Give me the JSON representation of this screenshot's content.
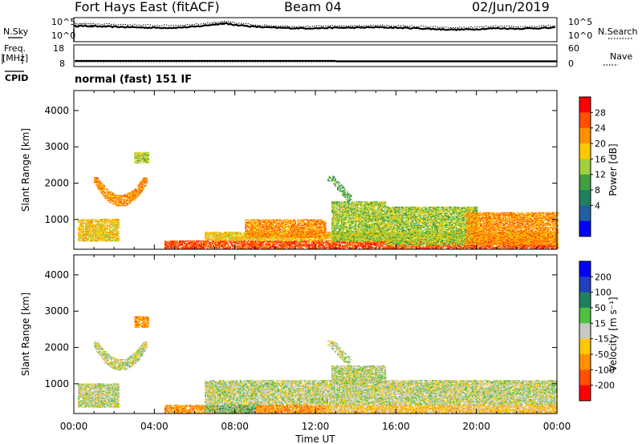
{
  "header": {
    "radar": "Fort Hays East (fitACF)",
    "beam": "Beam 04",
    "date": "02/Jun/2019"
  },
  "left_labels": {
    "nsky": "N.Sky",
    "freq": "Freq.",
    "freq_unit": "[MHz]",
    "cpid": "CPID"
  },
  "right_labels": {
    "nsearch": "N.Search",
    "nave": "Nave"
  },
  "cpid_text": "normal (fast) 151 IF",
  "colors": {
    "frame": "#000000",
    "grey": "#c8c8c0"
  },
  "chart_data": [
    {
      "type": "line",
      "name": "noise",
      "ylim_log": [
        0,
        5
      ],
      "left_ticks": [
        "10^5",
        "10^0"
      ],
      "right_ticks": [
        "10^5",
        "10^0"
      ],
      "x_hours": [
        0,
        0.5,
        1,
        2,
        3,
        4,
        5,
        6,
        7,
        7.5,
        8,
        9,
        10,
        11,
        12,
        13,
        14,
        15,
        16,
        17,
        18,
        19,
        20,
        21,
        22,
        23,
        24
      ],
      "nsky_log": [
        3.2,
        3.3,
        3.2,
        3.1,
        3.0,
        2.9,
        2.9,
        3.1,
        3.6,
        3.8,
        3.5,
        3.1,
        2.9,
        2.8,
        2.8,
        2.9,
        2.9,
        3.0,
        2.9,
        2.8,
        2.6,
        2.5,
        2.6,
        2.8,
        2.7,
        2.8,
        2.9
      ],
      "nsearch_log": [
        3.7,
        3.8,
        3.7,
        3.6,
        3.5,
        3.4,
        3.4,
        3.6,
        4.0,
        4.2,
        3.9,
        3.5,
        3.3,
        3.2,
        3.2,
        3.3,
        3.3,
        3.4,
        3.3,
        3.2,
        3.0,
        2.9,
        3.0,
        3.2,
        3.1,
        3.2,
        3.3
      ]
    },
    {
      "type": "line",
      "name": "frequency-nave",
      "left_ticks": [
        "18",
        "8"
      ],
      "right_ticks": [
        "60",
        "0"
      ],
      "freq_ylim": [
        8,
        18
      ],
      "freq_segments": [
        {
          "start": 0.05,
          "end": 13.0,
          "value": 10.6
        },
        {
          "start": 13.0,
          "end": 24.0,
          "value": 10.4
        }
      ],
      "nave_ylim": [
        0,
        60
      ],
      "nave_value": 13
    },
    {
      "type": "heatmap",
      "name": "power",
      "xlim": [
        0,
        24
      ],
      "ylim": [
        180,
        4550
      ],
      "ylabel": "Slant Range [km]",
      "yticks": [
        1000,
        2000,
        3000,
        4000
      ],
      "colorbar_label": "Power [dB]",
      "colorbar_ticks": [
        "28",
        "24",
        "20",
        "16",
        "12",
        "8",
        "4"
      ],
      "colorbar_colors": [
        "#ff0000",
        "#ff5000",
        "#ff9000",
        "#ffc800",
        "#a0d040",
        "#40a040",
        "#208060",
        "#2060a0",
        "#0000ff"
      ],
      "regions": [
        {
          "t0": 1.0,
          "t1": 3.6,
          "r0": 1350,
          "r1": 2150,
          "shape": "arc",
          "level": 6
        },
        {
          "t0": 3.0,
          "t1": 3.7,
          "r0": 2550,
          "r1": 2850,
          "shape": "box",
          "level": 4
        },
        {
          "t0": 0.2,
          "t1": 2.2,
          "r0": 400,
          "r1": 1000,
          "shape": "box",
          "level": 5
        },
        {
          "t0": 4.5,
          "t1": 24.0,
          "r0": 200,
          "r1": 420,
          "shape": "box",
          "level": 7
        },
        {
          "t0": 6.5,
          "t1": 24.0,
          "r0": 420,
          "r1": 650,
          "shape": "box",
          "level": 5
        },
        {
          "t0": 8.5,
          "t1": 12.5,
          "r0": 500,
          "r1": 1000,
          "shape": "box",
          "level": 6
        },
        {
          "t0": 12.8,
          "t1": 15.5,
          "r0": 400,
          "r1": 1500,
          "shape": "box",
          "level": 4
        },
        {
          "t0": 15.5,
          "t1": 20.0,
          "r0": 300,
          "r1": 1350,
          "shape": "box",
          "level": 4
        },
        {
          "t0": 19.5,
          "t1": 24.0,
          "r0": 300,
          "r1": 1200,
          "shape": "box",
          "level": 6
        },
        {
          "t0": 12.6,
          "t1": 13.8,
          "r0": 1500,
          "r1": 2200,
          "shape": "streak",
          "level": 3
        }
      ]
    },
    {
      "type": "heatmap",
      "name": "velocity",
      "xlim": [
        0,
        24
      ],
      "ylim": [
        180,
        4550
      ],
      "xlabel": "Time UT",
      "ylabel": "Slant Range [km]",
      "xticks": [
        "00:00",
        "04:00",
        "08:00",
        "12:00",
        "16:00",
        "20:00",
        "00:00"
      ],
      "yticks": [
        1000,
        2000,
        3000,
        4000
      ],
      "colorbar_label": "Velocity [m s⁻¹]",
      "colorbar_ticks": [
        "200",
        "100",
        "50",
        "15",
        "-15",
        "-50",
        "-100",
        "-200"
      ],
      "colorbar_colors": [
        "#0000ff",
        "#2040c0",
        "#208060",
        "#50c040",
        "#c8c8c0",
        "#ffc800",
        "#ff9000",
        "#ff5000",
        "#ff0000"
      ],
      "regions": [
        {
          "t0": 1.0,
          "t1": 3.6,
          "r0": 1350,
          "r1": 2150,
          "shape": "arc",
          "level": 4
        },
        {
          "t0": 3.0,
          "t1": 3.7,
          "r0": 2550,
          "r1": 2850,
          "shape": "box",
          "level": 6
        },
        {
          "t0": 0.2,
          "t1": 2.2,
          "r0": 350,
          "r1": 1000,
          "shape": "box",
          "level": 4
        },
        {
          "t0": 4.5,
          "t1": 12.5,
          "r0": 200,
          "r1": 420,
          "shape": "box",
          "level": 6
        },
        {
          "t0": 6.5,
          "t1": 9.0,
          "r0": 200,
          "r1": 420,
          "shape": "box",
          "level": 3
        },
        {
          "t0": 12.5,
          "t1": 24.0,
          "r0": 200,
          "r1": 420,
          "shape": "box",
          "level": 5
        },
        {
          "t0": 6.5,
          "t1": 24.0,
          "r0": 420,
          "r1": 1100,
          "shape": "box",
          "level": 4
        },
        {
          "t0": 12.8,
          "t1": 15.5,
          "r0": 1000,
          "r1": 1500,
          "shape": "box",
          "level": 4
        },
        {
          "t0": 12.6,
          "t1": 13.8,
          "r0": 1500,
          "r1": 2200,
          "shape": "streak",
          "level": 4
        }
      ]
    }
  ]
}
